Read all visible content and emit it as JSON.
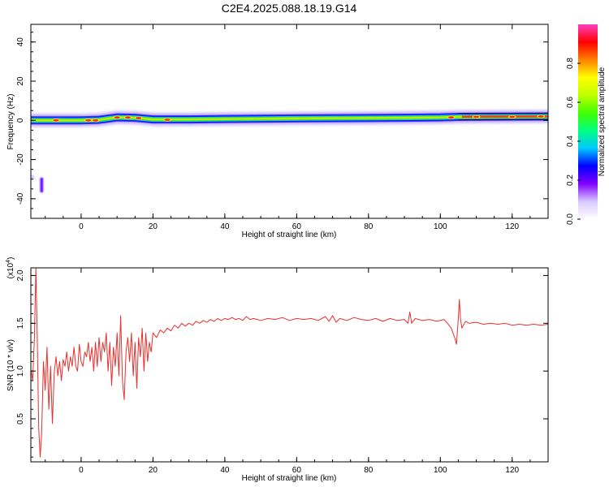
{
  "title": "C2E4.2025.088.18.19.G14",
  "colors": {
    "snr_line": "#e8302c",
    "axis": "#000000",
    "background": "#ffffff",
    "spectrum_band": "#39e03a",
    "spectrum_core": "#ff3030",
    "spectrum_halo": "#b9a4ff"
  },
  "chart_data": [
    {
      "type": "heatmap",
      "xlabel": "Height of straight line (km)",
      "ylabel": "Frequency (Hz)",
      "xlim": [
        -14,
        130
      ],
      "ylim": [
        -50,
        49
      ],
      "xticks": [
        0,
        20,
        40,
        60,
        80,
        100,
        120
      ],
      "yticks": [
        -40,
        -20,
        0,
        20,
        40
      ],
      "grid": false,
      "band_center_hz": [
        [
          -14,
          0
        ],
        [
          -10,
          0
        ],
        [
          -5,
          0
        ],
        [
          0,
          0
        ],
        [
          5,
          0.3
        ],
        [
          10,
          1.5
        ],
        [
          15,
          1.3
        ],
        [
          20,
          0.5
        ],
        [
          30,
          0.5
        ],
        [
          40,
          0.7
        ],
        [
          60,
          1
        ],
        [
          80,
          1.2
        ],
        [
          100,
          1.5
        ],
        [
          105,
          1.8
        ],
        [
          130,
          2.0
        ]
      ],
      "hotspots": [
        {
          "x": -7,
          "hz": 0
        },
        {
          "x": 2,
          "hz": 0
        },
        {
          "x": 4,
          "hz": 0
        },
        {
          "x": 10,
          "hz": 1.5
        },
        {
          "x": 13,
          "hz": 1.5
        },
        {
          "x": 16,
          "hz": 1.2
        },
        {
          "x": 24,
          "hz": 0.3
        },
        {
          "x": 103,
          "hz": 1.5
        },
        {
          "x": 110,
          "hz": 1.8
        },
        {
          "x": 120,
          "hz": 1.8
        },
        {
          "x": 128,
          "hz": 2
        }
      ],
      "isolated_feature": {
        "x": -11,
        "hz_min": -36,
        "hz_max": -30
      },
      "colorbar": {
        "label": "Normalized spectral amplitude",
        "range": [
          0,
          1
        ],
        "ticks": [
          "0.0",
          "0.2",
          "0.4",
          "0.6",
          "0.8"
        ],
        "tick_values": [
          0,
          0.2,
          0.4,
          0.6,
          0.8
        ],
        "colors": [
          "#ffffff",
          "#d8c8ff",
          "#8000ff",
          "#0000ff",
          "#00c8ff",
          "#00ff80",
          "#40ff00",
          "#c0ff00",
          "#ffff00",
          "#ff8000",
          "#ff0000",
          "#ff40c0"
        ]
      }
    },
    {
      "type": "line",
      "xlabel": "Height of straight line (km)",
      "ylabel": "SNR (10 * v/v)",
      "scale_note": "(x10",
      "scale_exp": "4",
      "scale_close": ")",
      "xlim": [
        -14,
        130
      ],
      "ylim": [
        0.05,
        2.08
      ],
      "xticks": [
        0,
        20,
        40,
        60,
        80,
        100,
        120
      ],
      "yticks": [
        0.5,
        1.0,
        1.5,
        2.0
      ],
      "ytick_labels": [
        "0.5",
        "1.0",
        "1.5",
        "2.0"
      ],
      "grid": false,
      "series": [
        {
          "values": [
            [
              -14,
              1.02
            ],
            [
              -13.5,
              0.9
            ],
            [
              -13,
              1.35
            ],
            [
              -12.6,
              2.08
            ],
            [
              -12.2,
              1.3
            ],
            [
              -11.8,
              0.4
            ],
            [
              -11.4,
              0.1
            ],
            [
              -11,
              0.35
            ],
            [
              -10.5,
              1.1
            ],
            [
              -10,
              0.8
            ],
            [
              -9.5,
              1.25
            ],
            [
              -9,
              0.6
            ],
            [
              -8.5,
              1.05
            ],
            [
              -8,
              0.45
            ],
            [
              -7.5,
              0.98
            ],
            [
              -7,
              1.15
            ],
            [
              -6.5,
              0.95
            ],
            [
              -6,
              1.1
            ],
            [
              -5.5,
              0.9
            ],
            [
              -5,
              1.12
            ],
            [
              -4.5,
              1.05
            ],
            [
              -4,
              1.2
            ],
            [
              -3.5,
              1.0
            ],
            [
              -3,
              1.15
            ],
            [
              -2.5,
              1.05
            ],
            [
              -2,
              1.25
            ],
            [
              -1.5,
              1.05
            ],
            [
              -1,
              1.0
            ],
            [
              -0.5,
              1.28
            ],
            [
              0,
              1.1
            ],
            [
              0.5,
              1.05
            ],
            [
              1,
              1.2
            ],
            [
              1.5,
              1.15
            ],
            [
              2,
              1.3
            ],
            [
              2.5,
              1.1
            ],
            [
              3,
              1.25
            ],
            [
              3.5,
              1.0
            ],
            [
              4,
              1.3
            ],
            [
              4.5,
              1.05
            ],
            [
              5,
              1.35
            ],
            [
              5.5,
              1.1
            ],
            [
              6,
              1.3
            ],
            [
              6.5,
              1.2
            ],
            [
              7,
              1.4
            ],
            [
              7.5,
              1.0
            ],
            [
              8,
              1.3
            ],
            [
              8.5,
              0.85
            ],
            [
              9,
              1.25
            ],
            [
              9.5,
              1.05
            ],
            [
              10,
              1.4
            ],
            [
              10.5,
              0.95
            ],
            [
              11,
              1.58
            ],
            [
              11.5,
              0.9
            ],
            [
              12,
              0.7
            ],
            [
              12.5,
              1.2
            ],
            [
              13,
              1.35
            ],
            [
              13.5,
              1.1
            ],
            [
              14,
              1.4
            ],
            [
              14.5,
              0.95
            ],
            [
              15,
              1.3
            ],
            [
              15.5,
              0.82
            ],
            [
              16,
              1.35
            ],
            [
              16.5,
              1.15
            ],
            [
              17,
              1.45
            ],
            [
              17.5,
              1.0
            ],
            [
              18,
              1.4
            ],
            [
              18.5,
              1.1
            ],
            [
              19,
              1.3
            ],
            [
              19.5,
              1.2
            ],
            [
              20,
              1.4
            ],
            [
              21,
              1.35
            ],
            [
              22,
              1.43
            ],
            [
              23,
              1.4
            ],
            [
              24,
              1.45
            ],
            [
              25,
              1.42
            ],
            [
              26,
              1.48
            ],
            [
              27,
              1.45
            ],
            [
              28,
              1.5
            ],
            [
              29,
              1.47
            ],
            [
              30,
              1.5
            ],
            [
              31,
              1.48
            ],
            [
              32,
              1.52
            ],
            [
              33,
              1.5
            ],
            [
              34,
              1.53
            ],
            [
              35,
              1.51
            ],
            [
              36,
              1.54
            ],
            [
              37,
              1.52
            ],
            [
              38,
              1.55
            ],
            [
              39,
              1.53
            ],
            [
              40,
              1.55
            ],
            [
              41,
              1.54
            ],
            [
              42,
              1.56
            ],
            [
              43,
              1.54
            ],
            [
              44,
              1.55
            ],
            [
              45,
              1.53
            ],
            [
              46,
              1.57
            ],
            [
              47,
              1.54
            ],
            [
              48,
              1.55
            ],
            [
              50,
              1.53
            ],
            [
              52,
              1.55
            ],
            [
              54,
              1.54
            ],
            [
              56,
              1.56
            ],
            [
              58,
              1.53
            ],
            [
              60,
              1.55
            ],
            [
              62,
              1.54
            ],
            [
              64,
              1.55
            ],
            [
              66,
              1.53
            ],
            [
              68,
              1.57
            ],
            [
              69,
              1.52
            ],
            [
              70,
              1.58
            ],
            [
              71,
              1.51
            ],
            [
              72,
              1.55
            ],
            [
              74,
              1.53
            ],
            [
              76,
              1.56
            ],
            [
              78,
              1.54
            ],
            [
              80,
              1.53
            ],
            [
              82,
              1.55
            ],
            [
              84,
              1.52
            ],
            [
              86,
              1.55
            ],
            [
              88,
              1.53
            ],
            [
              90,
              1.54
            ],
            [
              91,
              1.5
            ],
            [
              91.5,
              1.62
            ],
            [
              92,
              1.5
            ],
            [
              93,
              1.55
            ],
            [
              95,
              1.53
            ],
            [
              97,
              1.54
            ],
            [
              99,
              1.52
            ],
            [
              101,
              1.54
            ],
            [
              102,
              1.5
            ],
            [
              103,
              1.45
            ],
            [
              104,
              1.35
            ],
            [
              104.5,
              1.28
            ],
            [
              105,
              1.55
            ],
            [
              105.3,
              1.75
            ],
            [
              105.6,
              1.55
            ],
            [
              106,
              1.45
            ],
            [
              107,
              1.52
            ],
            [
              108,
              1.5
            ],
            [
              110,
              1.51
            ],
            [
              112,
              1.49
            ],
            [
              114,
              1.5
            ],
            [
              116,
              1.49
            ],
            [
              118,
              1.5
            ],
            [
              120,
              1.48
            ],
            [
              122,
              1.49
            ],
            [
              124,
              1.48
            ],
            [
              126,
              1.49
            ],
            [
              128,
              1.48
            ],
            [
              130,
              1.49
            ]
          ]
        }
      ]
    }
  ]
}
